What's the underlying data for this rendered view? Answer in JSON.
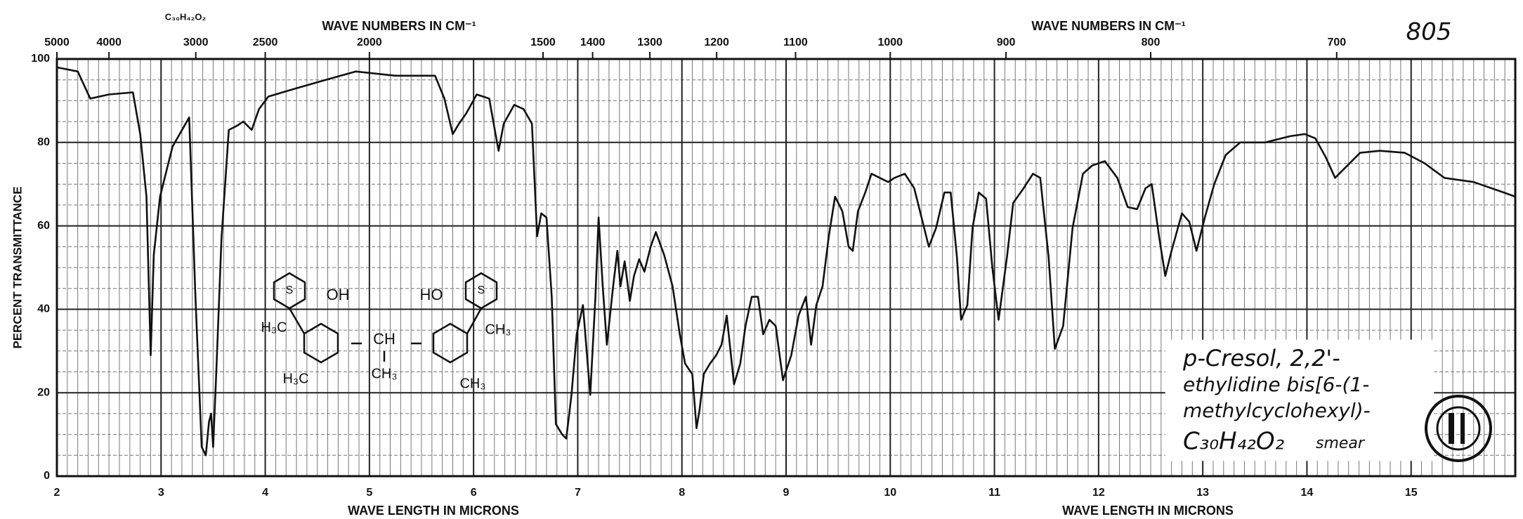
{
  "chart_data": {
    "type": "line",
    "chart_number": "805",
    "formula_top": "C₃₀H₄₂O₂",
    "top_axis_label": "WAVE NUMBERS IN CM⁻¹",
    "top_axis_label_right": "WAVE NUMBERS IN CM⁻¹",
    "xlabel": "WAVE LENGTH IN MICRONS",
    "xlabel_right": "WAVE LENGTH IN MICRONS",
    "ylabel": "PERCENT TRANSMITTANCE",
    "color": "#111111",
    "grid": true,
    "xlim": [
      2,
      16
    ],
    "xticks": [
      2,
      3,
      4,
      5,
      6,
      7,
      8,
      9,
      10,
      11,
      12,
      13,
      14,
      15
    ],
    "ylim": [
      0,
      100
    ],
    "yticks": [
      0,
      20,
      40,
      60,
      80,
      100
    ],
    "wavenumber_ticks": [
      5000,
      4000,
      3000,
      2500,
      2000,
      1500,
      1400,
      1300,
      1200,
      1100,
      1000,
      900,
      800,
      700
    ],
    "x": [
      2,
      2.2,
      2.32,
      2.5,
      2.73,
      2.8,
      2.86,
      2.9,
      2.93,
      2.99,
      3.11,
      3.27,
      3.33,
      3.39,
      3.43,
      3.46,
      3.48,
      3.5,
      3.53,
      3.58,
      3.65,
      3.73,
      3.79,
      3.87,
      3.94,
      4.03,
      4.3,
      4.58,
      4.87,
      5.25,
      5.63,
      5.72,
      5.8,
      5.86,
      5.93,
      6.03,
      6.15,
      6.2,
      6.24,
      6.29,
      6.39,
      6.48,
      6.56,
      6.61,
      6.65,
      6.7,
      6.75,
      6.79,
      6.85,
      6.89,
      6.94,
      6.99,
      7.05,
      7.12,
      7.17,
      7.2,
      7.24,
      7.28,
      7.34,
      7.38,
      7.41,
      7.45,
      7.5,
      7.54,
      7.59,
      7.64,
      7.7,
      7.75,
      7.83,
      7.91,
      7.98,
      8.03,
      8.07,
      8.1,
      8.14,
      8.17,
      8.21,
      8.27,
      8.33,
      8.38,
      8.43,
      8.5,
      8.56,
      8.61,
      8.67,
      8.73,
      8.78,
      8.84,
      8.9,
      8.97,
      9.05,
      9.12,
      9.19,
      9.24,
      9.29,
      9.35,
      9.41,
      9.47,
      9.54,
      9.6,
      9.64,
      9.69,
      9.76,
      9.82,
      9.9,
      9.98,
      10.04,
      10.14,
      10.23,
      10.31,
      10.37,
      10.44,
      10.52,
      10.58,
      10.64,
      10.68,
      10.74,
      10.79,
      10.85,
      10.92,
      10.98,
      11.04,
      11.12,
      11.18,
      11.28,
      11.37,
      11.44,
      11.52,
      11.58,
      11.66,
      11.75,
      11.85,
      11.94,
      12.06,
      12.18,
      12.28,
      12.37,
      12.45,
      12.51,
      12.58,
      12.64,
      12.7,
      12.8,
      12.87,
      12.94,
      13.02,
      13.11,
      13.22,
      13.36,
      13.6,
      13.84,
      13.98,
      14.08,
      14.18,
      14.27,
      14.37,
      14.51,
      14.7,
      14.94,
      15.13,
      15.32,
      15.6,
      15.89,
      16
    ],
    "values": [
      98,
      97,
      90.5,
      91.5,
      92,
      82,
      67,
      29,
      53,
      67,
      79,
      86,
      43,
      7,
      5,
      13,
      15,
      7,
      25,
      57,
      83,
      84,
      85,
      83,
      88,
      91,
      93,
      95,
      97,
      96,
      96,
      90.5,
      82,
      84.5,
      87,
      91.5,
      90.5,
      83.5,
      78,
      84.5,
      89,
      88,
      84.5,
      57.5,
      63,
      62,
      43,
      12.5,
      10,
      9,
      19.5,
      34,
      41,
      19.5,
      43,
      62,
      45.5,
      31.5,
      45.5,
      54,
      45.5,
      51.5,
      42,
      48,
      52,
      49,
      55,
      58.5,
      53,
      45.5,
      34,
      27,
      25.5,
      24.5,
      11.5,
      16,
      24.5,
      27,
      29,
      31.5,
      38.5,
      22,
      27,
      36,
      43,
      43,
      34,
      37.5,
      36,
      23,
      29,
      38.5,
      43,
      31.5,
      41,
      45.5,
      57.5,
      67,
      63.5,
      55,
      54,
      63.5,
      68,
      72.5,
      71.5,
      70.5,
      71.5,
      72.5,
      69,
      61,
      55,
      59.5,
      68,
      68,
      52.5,
      37.5,
      41,
      59.5,
      68,
      66.5,
      50,
      37.5,
      52.5,
      65.5,
      69,
      72.5,
      71.5,
      52.5,
      30.5,
      36,
      59.5,
      72.5,
      74.5,
      75.5,
      71.5,
      64.5,
      64,
      69,
      70,
      57.5,
      48,
      54,
      63,
      61,
      54,
      62,
      70,
      77,
      80,
      80,
      81.5,
      82,
      81,
      76.5,
      71.5,
      74,
      77.5,
      78,
      77.5,
      75,
      71.5,
      70.5,
      68,
      67
    ],
    "structure_labels": [
      "S",
      "S",
      "OH",
      "HO",
      "H₃C",
      "CH₃",
      "CH",
      "CH₃",
      "H₃C",
      "CH₃"
    ],
    "compound_name": [
      "p-Cresol, 2,2'-",
      "ethylidine bis[6-(1-",
      "methylcyclohexyl)-",
      "C₃₀H₄₂O₂"
    ],
    "sample_note": "smear"
  }
}
